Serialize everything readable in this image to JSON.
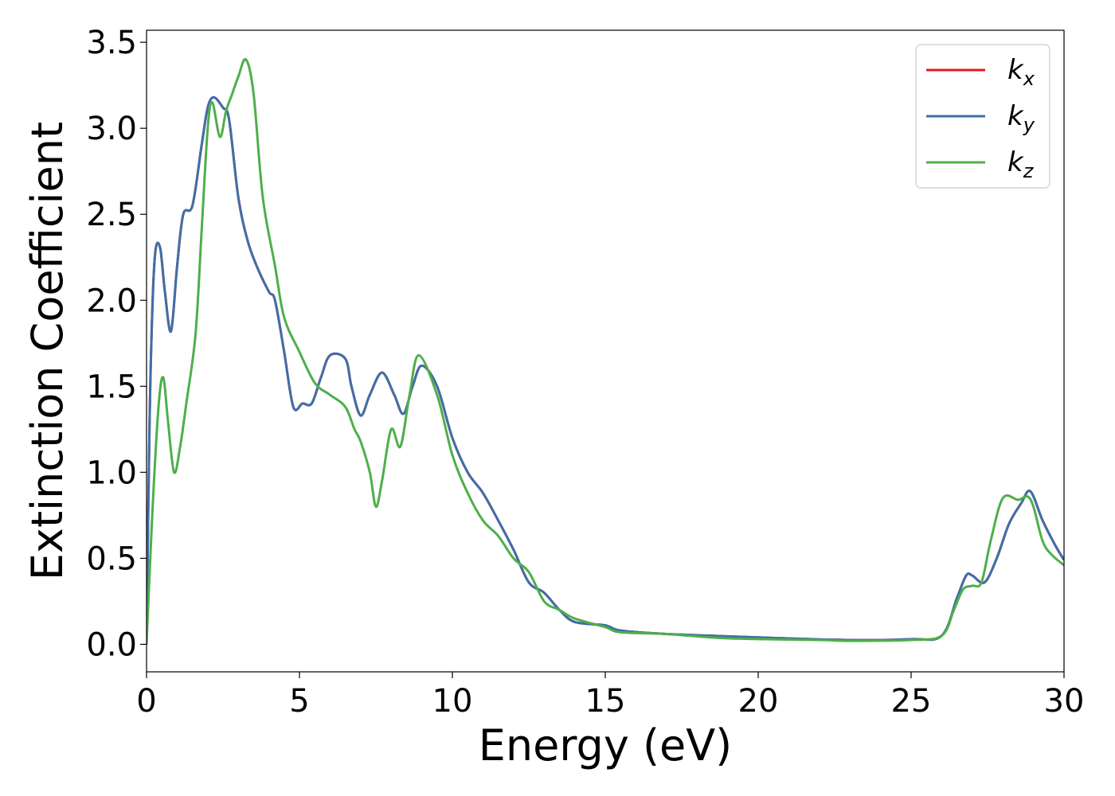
{
  "chart_data": {
    "type": "line",
    "xlabel": "Energy (eV)",
    "ylabel": "Extinction Coefficient",
    "xlim": [
      0,
      30
    ],
    "ylim": [
      -0.16,
      3.57
    ],
    "xticks": [
      0,
      5,
      10,
      15,
      20,
      25,
      30
    ],
    "yticks": [
      0.0,
      0.5,
      1.0,
      1.5,
      2.0,
      2.5,
      3.0,
      3.5
    ],
    "xtick_labels": [
      "0",
      "5",
      "10",
      "15",
      "20",
      "25",
      "30"
    ],
    "ytick_labels": [
      "0.0",
      "0.5",
      "1.0",
      "1.5",
      "2.0",
      "2.5",
      "3.0",
      "3.5"
    ],
    "grid": false,
    "legend_position": "top-right",
    "series": [
      {
        "name": "k_x",
        "legend_base": "k",
        "legend_sub": "x",
        "color": "#e41a1c",
        "points": [
          [
            0,
            0
          ],
          [
            0.1,
            1.3
          ],
          [
            0.2,
            2.0
          ],
          [
            0.3,
            2.3
          ],
          [
            0.45,
            2.3
          ],
          [
            0.6,
            2.05
          ],
          [
            0.8,
            1.82
          ],
          [
            1.0,
            2.2
          ],
          [
            1.2,
            2.5
          ],
          [
            1.5,
            2.55
          ],
          [
            1.8,
            2.9
          ],
          [
            2.0,
            3.12
          ],
          [
            2.2,
            3.18
          ],
          [
            2.5,
            3.12
          ],
          [
            2.7,
            3.05
          ],
          [
            3.0,
            2.6
          ],
          [
            3.3,
            2.35
          ],
          [
            3.6,
            2.2
          ],
          [
            4.0,
            2.05
          ],
          [
            4.2,
            2.0
          ],
          [
            4.5,
            1.7
          ],
          [
            4.8,
            1.38
          ],
          [
            5.1,
            1.4
          ],
          [
            5.4,
            1.4
          ],
          [
            5.7,
            1.55
          ],
          [
            6.0,
            1.68
          ],
          [
            6.5,
            1.66
          ],
          [
            6.7,
            1.5
          ],
          [
            7.0,
            1.33
          ],
          [
            7.3,
            1.45
          ],
          [
            7.7,
            1.58
          ],
          [
            8.1,
            1.45
          ],
          [
            8.4,
            1.34
          ],
          [
            8.7,
            1.5
          ],
          [
            9.0,
            1.62
          ],
          [
            9.5,
            1.5
          ],
          [
            10.0,
            1.2
          ],
          [
            10.5,
            1.0
          ],
          [
            11.0,
            0.88
          ],
          [
            11.5,
            0.72
          ],
          [
            12.0,
            0.55
          ],
          [
            12.5,
            0.36
          ],
          [
            13.0,
            0.3
          ],
          [
            13.5,
            0.2
          ],
          [
            14.0,
            0.13
          ],
          [
            15.0,
            0.11
          ],
          [
            15.5,
            0.08
          ],
          [
            17.0,
            0.06
          ],
          [
            20.0,
            0.04
          ],
          [
            23.0,
            0.025
          ],
          [
            25.0,
            0.03
          ],
          [
            26.0,
            0.05
          ],
          [
            26.5,
            0.27
          ],
          [
            26.8,
            0.4
          ],
          [
            27.0,
            0.4
          ],
          [
            27.4,
            0.36
          ],
          [
            27.8,
            0.5
          ],
          [
            28.2,
            0.7
          ],
          [
            28.6,
            0.82
          ],
          [
            28.9,
            0.89
          ],
          [
            29.3,
            0.72
          ],
          [
            29.7,
            0.58
          ],
          [
            30.0,
            0.49
          ]
        ]
      },
      {
        "name": "k_y",
        "legend_base": "k",
        "legend_sub": "y",
        "color": "#3e6fa8",
        "points": [
          [
            0,
            0
          ],
          [
            0.1,
            1.3
          ],
          [
            0.2,
            2.0
          ],
          [
            0.3,
            2.3
          ],
          [
            0.45,
            2.3
          ],
          [
            0.6,
            2.05
          ],
          [
            0.8,
            1.82
          ],
          [
            1.0,
            2.2
          ],
          [
            1.2,
            2.5
          ],
          [
            1.5,
            2.55
          ],
          [
            1.8,
            2.9
          ],
          [
            2.0,
            3.12
          ],
          [
            2.2,
            3.18
          ],
          [
            2.5,
            3.12
          ],
          [
            2.7,
            3.05
          ],
          [
            3.0,
            2.6
          ],
          [
            3.3,
            2.35
          ],
          [
            3.6,
            2.2
          ],
          [
            4.0,
            2.05
          ],
          [
            4.2,
            2.0
          ],
          [
            4.5,
            1.7
          ],
          [
            4.8,
            1.38
          ],
          [
            5.1,
            1.4
          ],
          [
            5.4,
            1.4
          ],
          [
            5.7,
            1.55
          ],
          [
            6.0,
            1.68
          ],
          [
            6.5,
            1.66
          ],
          [
            6.7,
            1.5
          ],
          [
            7.0,
            1.33
          ],
          [
            7.3,
            1.45
          ],
          [
            7.7,
            1.58
          ],
          [
            8.1,
            1.45
          ],
          [
            8.4,
            1.34
          ],
          [
            8.7,
            1.5
          ],
          [
            9.0,
            1.62
          ],
          [
            9.5,
            1.5
          ],
          [
            10.0,
            1.2
          ],
          [
            10.5,
            1.0
          ],
          [
            11.0,
            0.88
          ],
          [
            11.5,
            0.72
          ],
          [
            12.0,
            0.55
          ],
          [
            12.5,
            0.36
          ],
          [
            13.0,
            0.3
          ],
          [
            13.5,
            0.2
          ],
          [
            14.0,
            0.13
          ],
          [
            15.0,
            0.11
          ],
          [
            15.5,
            0.08
          ],
          [
            17.0,
            0.06
          ],
          [
            20.0,
            0.04
          ],
          [
            23.0,
            0.025
          ],
          [
            25.0,
            0.03
          ],
          [
            26.0,
            0.05
          ],
          [
            26.5,
            0.27
          ],
          [
            26.8,
            0.4
          ],
          [
            27.0,
            0.4
          ],
          [
            27.4,
            0.36
          ],
          [
            27.8,
            0.5
          ],
          [
            28.2,
            0.7
          ],
          [
            28.6,
            0.82
          ],
          [
            28.9,
            0.89
          ],
          [
            29.3,
            0.72
          ],
          [
            29.7,
            0.58
          ],
          [
            30.0,
            0.49
          ]
        ]
      },
      {
        "name": "k_z",
        "legend_base": "k",
        "legend_sub": "z",
        "color": "#4daf4a",
        "points": [
          [
            0,
            0
          ],
          [
            0.2,
            0.8
          ],
          [
            0.4,
            1.4
          ],
          [
            0.55,
            1.55
          ],
          [
            0.7,
            1.3
          ],
          [
            0.9,
            1.0
          ],
          [
            1.1,
            1.15
          ],
          [
            1.3,
            1.4
          ],
          [
            1.6,
            1.8
          ],
          [
            1.8,
            2.4
          ],
          [
            2.0,
            3.0
          ],
          [
            2.15,
            3.15
          ],
          [
            2.4,
            2.95
          ],
          [
            2.6,
            3.1
          ],
          [
            2.8,
            3.2
          ],
          [
            3.0,
            3.3
          ],
          [
            3.25,
            3.4
          ],
          [
            3.5,
            3.2
          ],
          [
            3.8,
            2.6
          ],
          [
            4.2,
            2.2
          ],
          [
            4.5,
            1.9
          ],
          [
            5.0,
            1.7
          ],
          [
            5.5,
            1.52
          ],
          [
            6.0,
            1.45
          ],
          [
            6.5,
            1.38
          ],
          [
            6.8,
            1.25
          ],
          [
            7.0,
            1.18
          ],
          [
            7.3,
            1.0
          ],
          [
            7.5,
            0.8
          ],
          [
            7.7,
            0.95
          ],
          [
            8.0,
            1.25
          ],
          [
            8.3,
            1.15
          ],
          [
            8.6,
            1.45
          ],
          [
            8.9,
            1.68
          ],
          [
            9.5,
            1.45
          ],
          [
            10.0,
            1.1
          ],
          [
            10.5,
            0.88
          ],
          [
            11.0,
            0.72
          ],
          [
            11.5,
            0.63
          ],
          [
            12.0,
            0.5
          ],
          [
            12.5,
            0.42
          ],
          [
            13.0,
            0.25
          ],
          [
            13.5,
            0.2
          ],
          [
            14.0,
            0.15
          ],
          [
            15.0,
            0.1
          ],
          [
            15.5,
            0.07
          ],
          [
            17.0,
            0.06
          ],
          [
            19.0,
            0.035
          ],
          [
            22.0,
            0.025
          ],
          [
            23.0,
            0.02
          ],
          [
            25.0,
            0.025
          ],
          [
            26.0,
            0.05
          ],
          [
            26.4,
            0.2
          ],
          [
            26.7,
            0.32
          ],
          [
            27.0,
            0.34
          ],
          [
            27.3,
            0.36
          ],
          [
            27.6,
            0.6
          ],
          [
            28.0,
            0.85
          ],
          [
            28.5,
            0.84
          ],
          [
            28.8,
            0.86
          ],
          [
            29.0,
            0.8
          ],
          [
            29.3,
            0.6
          ],
          [
            29.6,
            0.52
          ],
          [
            30.0,
            0.46
          ]
        ]
      }
    ]
  }
}
